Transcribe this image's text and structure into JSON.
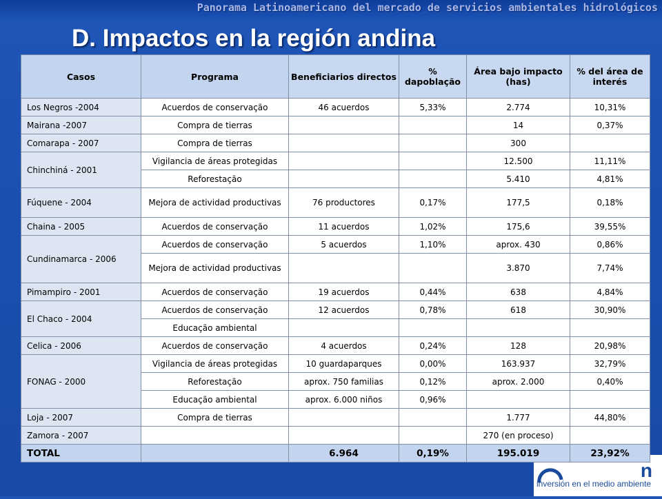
{
  "banner": "Panorama Latinoamericano del mercado de servicios ambientales hidrológicos",
  "title": "D. Impactos en la región andina",
  "logo_tagline": "inversión en el medio ambiente",
  "logo_fragment": "n",
  "table": {
    "headers": {
      "casos": "Casos",
      "programa": "Programa",
      "beneficiarios": "Beneficiarios directos",
      "poblacion": "% dapoblação",
      "area": "Área bajo impacto (has)",
      "interes": "% del área de interés"
    },
    "rows": [
      {
        "caso": "Los Negros -2004",
        "programa": "Acuerdos de conservação",
        "beneficiarios": "46 acuerdos",
        "poblacion": "5,33%",
        "area": "2.774",
        "interes": "10,31%"
      },
      {
        "caso": "Mairana -2007",
        "programa": "Compra de tierras",
        "beneficiarios": "",
        "poblacion": "",
        "area": "14",
        "interes": "0,37%"
      },
      {
        "caso": "Comarapa - 2007",
        "programa": "Compra de tierras",
        "beneficiarios": "",
        "poblacion": "",
        "area": "300",
        "interes": ""
      },
      {
        "caso": "Chinchiná - 2001",
        "programa": "Vigilancia de áreas protegidas",
        "beneficiarios": "",
        "poblacion": "",
        "area": "12.500",
        "interes": "11,11%"
      },
      {
        "programa": "Reforestação",
        "beneficiarios": "",
        "poblacion": "",
        "area": "5.410",
        "interes": "4,81%"
      },
      {
        "caso": "Fúquene - 2004",
        "programa": "Mejora de actividad productivas",
        "beneficiarios": "76 productores",
        "poblacion": "0,17%",
        "area": "177,5",
        "interes": "0,18%"
      },
      {
        "caso": "Chaina - 2005",
        "programa": "Acuerdos de conservação",
        "beneficiarios": "11 acuerdos",
        "poblacion": "1,02%",
        "area": "175,6",
        "interes": "39,55%"
      },
      {
        "caso": "Cundinamarca - 2006",
        "programa": "Acuerdos de conservação",
        "beneficiarios": "5 acuerdos",
        "poblacion": "1,10%",
        "area": "aprox. 430",
        "interes": "0,86%"
      },
      {
        "programa": "Mejora de actividad productivas",
        "beneficiarios": "",
        "poblacion": "",
        "area": "3.870",
        "interes": "7,74%"
      },
      {
        "caso": "Pimampiro - 2001",
        "programa": "Acuerdos de conservação",
        "beneficiarios": "19 acuerdos",
        "poblacion": "0,44%",
        "area": "638",
        "interes": "4,84%"
      },
      {
        "caso": "El Chaco - 2004",
        "programa": "Acuerdos de conservação",
        "beneficiarios": "12 acuerdos",
        "poblacion": "0,78%",
        "area": "618",
        "interes": "30,90%"
      },
      {
        "programa": "Educação ambiental",
        "beneficiarios": "",
        "poblacion": "",
        "area": "",
        "interes": ""
      },
      {
        "caso": "Celica - 2006",
        "programa": "Acuerdos de conservação",
        "beneficiarios": "4 acuerdos",
        "poblacion": "0,24%",
        "area": "128",
        "interes": "20,98%"
      },
      {
        "caso": "FONAG - 2000",
        "programa": "Vigilancia de áreas protegidas",
        "beneficiarios": "10 guardaparques",
        "poblacion": "0,00%",
        "area": "163.937",
        "interes": "32,79%"
      },
      {
        "programa": "Reforestação",
        "beneficiarios": "aprox. 750 familias",
        "poblacion": "0,12%",
        "area": "aprox. 2.000",
        "interes": "0,40%"
      },
      {
        "programa": "Educação ambiental",
        "beneficiarios": "aprox. 6.000 niños",
        "poblacion": "0,96%",
        "area": "",
        "interes": ""
      },
      {
        "caso": "Loja - 2007",
        "programa": "Compra de tierras",
        "beneficiarios": "",
        "poblacion": "",
        "area": "1.777",
        "interes": "44,80%"
      },
      {
        "caso": "Zamora - 2007",
        "programa": "",
        "beneficiarios": "",
        "poblacion": "",
        "area": "270 (en proceso)",
        "interes": ""
      }
    ],
    "total": {
      "caso": "TOTAL",
      "programa": "",
      "beneficiarios": "6.964",
      "poblacion": "0,19%",
      "area": "195.019",
      "interes": "23,92%"
    }
  }
}
